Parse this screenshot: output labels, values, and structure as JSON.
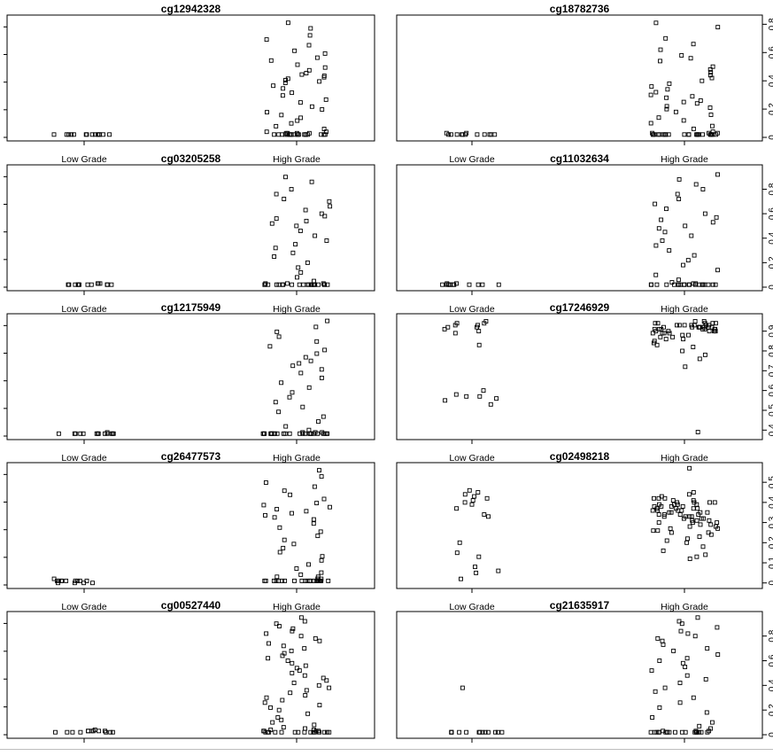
{
  "chart_data": [
    {
      "type": "scatter",
      "title": "cg12942328",
      "categories": [
        "Low Grade",
        "High Grade"
      ],
      "yticks": [],
      "ylim": [
        0,
        0.85
      ],
      "series": [
        {
          "category": "Low Grade",
          "values": [
            0.02,
            0.02,
            0.02,
            0.02,
            0.02,
            0.02,
            0.02,
            0.02,
            0.02,
            0.02,
            0.02,
            0.02,
            0.02,
            0.02
          ]
        },
        {
          "category": "High Grade",
          "values": [
            0.82,
            0.78,
            0.73,
            0.7,
            0.66,
            0.62,
            0.6,
            0.57,
            0.55,
            0.52,
            0.5,
            0.48,
            0.46,
            0.45,
            0.44,
            0.43,
            0.42,
            0.41,
            0.4,
            0.39,
            0.37,
            0.35,
            0.32,
            0.3,
            0.27,
            0.25,
            0.22,
            0.2,
            0.18,
            0.16,
            0.14,
            0.12,
            0.1,
            0.08,
            0.06,
            0.04,
            0.03,
            0.03,
            0.02,
            0.02,
            0.02,
            0.02,
            0.02,
            0.02,
            0.02,
            0.02,
            0.02,
            0.02,
            0.02,
            0.02,
            0.02,
            0.02,
            0.02,
            0.02,
            0.02,
            0.02,
            0.03,
            0.03,
            0.04,
            0.02
          ]
        }
      ]
    },
    {
      "type": "scatter",
      "title": "cg18782736",
      "categories": [
        "Low Grade",
        "High Grade"
      ],
      "yticks": [
        0,
        0.2,
        0.4,
        0.6,
        0.8
      ],
      "ylim": [
        0,
        0.84
      ],
      "series": [
        {
          "category": "Low Grade",
          "values": [
            0.02,
            0.02,
            0.02,
            0.02,
            0.02,
            0.02,
            0.02,
            0.02,
            0.02,
            0.02,
            0.03,
            0.03,
            0.02
          ]
        },
        {
          "category": "High Grade",
          "values": [
            0.81,
            0.78,
            0.7,
            0.66,
            0.62,
            0.58,
            0.56,
            0.54,
            0.5,
            0.48,
            0.46,
            0.44,
            0.42,
            0.4,
            0.38,
            0.36,
            0.34,
            0.32,
            0.3,
            0.29,
            0.28,
            0.26,
            0.25,
            0.24,
            0.22,
            0.21,
            0.2,
            0.18,
            0.16,
            0.14,
            0.12,
            0.1,
            0.08,
            0.06,
            0.04,
            0.03,
            0.02,
            0.02,
            0.02,
            0.02,
            0.02,
            0.02,
            0.02,
            0.02,
            0.02,
            0.02,
            0.02,
            0.02,
            0.02,
            0.02,
            0.02,
            0.02,
            0.02,
            0.02,
            0.02,
            0.02,
            0.02,
            0.02,
            0.03,
            0.03
          ]
        }
      ]
    },
    {
      "type": "scatter",
      "title": "cg03205258",
      "categories": [
        "Low Grade",
        "High Grade"
      ],
      "yticks": [],
      "ylim": [
        0,
        0.97
      ],
      "series": [
        {
          "category": "Low Grade",
          "values": [
            0.02,
            0.03,
            0.02,
            0.02,
            0.03,
            0.02,
            0.02,
            0.02,
            0.02,
            0.02,
            0.02,
            0.02,
            0.02,
            0.03
          ]
        },
        {
          "category": "High Grade",
          "values": [
            0.9,
            0.86,
            0.8,
            0.76,
            0.72,
            0.7,
            0.66,
            0.63,
            0.6,
            0.58,
            0.56,
            0.54,
            0.52,
            0.5,
            0.46,
            0.42,
            0.38,
            0.35,
            0.32,
            0.28,
            0.25,
            0.2,
            0.16,
            0.12,
            0.08,
            0.05,
            0.03,
            0.02,
            0.02,
            0.02,
            0.02,
            0.02,
            0.02,
            0.02,
            0.02,
            0.02,
            0.02,
            0.02,
            0.02,
            0.02,
            0.02,
            0.02,
            0.02,
            0.02,
            0.02,
            0.02,
            0.02,
            0.02,
            0.03,
            0.03
          ]
        }
      ]
    },
    {
      "type": "scatter",
      "title": "cg11032634",
      "categories": [
        "Low Grade",
        "High Grade"
      ],
      "yticks": [
        0,
        0.2,
        0.4,
        0.6,
        0.8
      ],
      "ylim": [
        0,
        0.97
      ],
      "series": [
        {
          "category": "Low Grade",
          "values": [
            0.02,
            0.02,
            0.02,
            0.03,
            0.02,
            0.02,
            0.02,
            0.02,
            0.02,
            0.02,
            0.02,
            0.03,
            0.02
          ]
        },
        {
          "category": "High Grade",
          "values": [
            0.92,
            0.88,
            0.84,
            0.8,
            0.76,
            0.72,
            0.68,
            0.64,
            0.6,
            0.57,
            0.55,
            0.53,
            0.5,
            0.48,
            0.45,
            0.42,
            0.38,
            0.34,
            0.3,
            0.26,
            0.22,
            0.18,
            0.14,
            0.1,
            0.06,
            0.04,
            0.02,
            0.02,
            0.02,
            0.02,
            0.02,
            0.02,
            0.02,
            0.02,
            0.02,
            0.02,
            0.02,
            0.02,
            0.02,
            0.02,
            0.02,
            0.02,
            0.02,
            0.02,
            0.02,
            0.02,
            0.03,
            0.03
          ]
        }
      ]
    },
    {
      "type": "scatter",
      "title": "cg12175949",
      "categories": [
        "Low Grade",
        "High Grade"
      ],
      "yticks": [],
      "ylim": [
        0,
        0.98
      ],
      "series": [
        {
          "category": "Low Grade",
          "values": [
            0.02,
            0.03,
            0.02,
            0.02,
            0.02,
            0.02,
            0.02,
            0.02,
            0.02,
            0.02,
            0.02,
            0.02,
            0.02,
            0.02
          ]
        },
        {
          "category": "High Grade",
          "values": [
            0.95,
            0.9,
            0.86,
            0.82,
            0.78,
            0.74,
            0.71,
            0.68,
            0.65,
            0.62,
            0.6,
            0.58,
            0.55,
            0.52,
            0.48,
            0.44,
            0.4,
            0.36,
            0.32,
            0.28,
            0.24,
            0.2,
            0.16,
            0.12,
            0.08,
            0.05,
            0.03,
            0.02,
            0.02,
            0.02,
            0.02,
            0.02,
            0.02,
            0.02,
            0.02,
            0.02,
            0.02,
            0.02,
            0.02,
            0.02,
            0.02,
            0.02,
            0.02,
            0.02,
            0.02,
            0.02,
            0.02,
            0.02,
            0.02,
            0.02,
            0.02,
            0.02,
            0.03,
            0.03
          ]
        }
      ]
    },
    {
      "type": "scatter",
      "title": "cg17246929",
      "categories": [
        "Low Grade",
        "High Grade"
      ],
      "yticks": [
        0.4,
        0.5,
        0.6,
        0.7,
        0.8,
        0.9
      ],
      "ylim": [
        0.37,
        0.97
      ],
      "series": [
        {
          "category": "Low Grade",
          "values": [
            0.94,
            0.95,
            0.93,
            0.92,
            0.91,
            0.9,
            0.89,
            0.92,
            0.94,
            0.93,
            0.83,
            0.57,
            0.53,
            0.58,
            0.56,
            0.55,
            0.6,
            0.57
          ]
        },
        {
          "category": "High Grade",
          "values": [
            0.95,
            0.95,
            0.94,
            0.94,
            0.94,
            0.93,
            0.93,
            0.93,
            0.93,
            0.92,
            0.92,
            0.92,
            0.92,
            0.92,
            0.92,
            0.91,
            0.91,
            0.91,
            0.91,
            0.91,
            0.9,
            0.9,
            0.9,
            0.9,
            0.9,
            0.89,
            0.89,
            0.89,
            0.88,
            0.88,
            0.87,
            0.87,
            0.86,
            0.86,
            0.85,
            0.84,
            0.83,
            0.82,
            0.8,
            0.78,
            0.76,
            0.72,
            0.39,
            0.93,
            0.92,
            0.94,
            0.91,
            0.9,
            0.92,
            0.93,
            0.91,
            0.89,
            0.94,
            0.92,
            0.93
          ]
        }
      ]
    },
    {
      "type": "scatter",
      "title": "cg26477573",
      "categories": [
        "Low Grade",
        "High Grade"
      ],
      "yticks": [],
      "ylim": [
        0,
        0.58
      ],
      "series": [
        {
          "category": "Low Grade",
          "values": [
            0.02,
            0.02,
            0.02,
            0.01,
            0.02,
            0.01,
            0.02,
            0.02,
            0.01,
            0.02,
            0.01,
            0.02,
            0.02,
            0.03
          ]
        },
        {
          "category": "High Grade",
          "values": [
            0.56,
            0.53,
            0.5,
            0.48,
            0.46,
            0.44,
            0.42,
            0.4,
            0.39,
            0.38,
            0.37,
            0.36,
            0.35,
            0.34,
            0.33,
            0.32,
            0.3,
            0.28,
            0.26,
            0.24,
            0.22,
            0.2,
            0.18,
            0.16,
            0.14,
            0.12,
            0.1,
            0.08,
            0.06,
            0.04,
            0.03,
            0.02,
            0.02,
            0.02,
            0.02,
            0.02,
            0.02,
            0.02,
            0.02,
            0.02,
            0.02,
            0.02,
            0.02,
            0.02,
            0.02,
            0.02,
            0.02,
            0.02,
            0.02,
            0.02,
            0.02,
            0.02,
            0.02,
            0.03,
            0.03,
            0.04,
            0.05
          ]
        }
      ]
    },
    {
      "type": "scatter",
      "title": "cg02498218",
      "categories": [
        "Low Grade",
        "High Grade"
      ],
      "yticks": [
        0,
        0.1,
        0.2,
        0.3,
        0.4,
        0.5
      ],
      "ylim": [
        -0.01,
        0.58
      ],
      "series": [
        {
          "category": "Low Grade",
          "values": [
            0.46,
            0.44,
            0.43,
            0.42,
            0.41,
            0.4,
            0.39,
            0.37,
            0.34,
            0.33,
            0.2,
            0.15,
            0.13,
            0.08,
            0.06,
            0.05,
            0.02,
            0.45
          ]
        },
        {
          "category": "High Grade",
          "values": [
            0.57,
            0.45,
            0.44,
            0.43,
            0.42,
            0.42,
            0.41,
            0.41,
            0.4,
            0.4,
            0.4,
            0.39,
            0.39,
            0.39,
            0.38,
            0.38,
            0.38,
            0.37,
            0.37,
            0.37,
            0.36,
            0.36,
            0.36,
            0.35,
            0.35,
            0.35,
            0.34,
            0.34,
            0.34,
            0.33,
            0.33,
            0.33,
            0.32,
            0.32,
            0.32,
            0.31,
            0.31,
            0.3,
            0.3,
            0.29,
            0.29,
            0.28,
            0.28,
            0.27,
            0.27,
            0.26,
            0.26,
            0.25,
            0.25,
            0.24,
            0.23,
            0.22,
            0.21,
            0.2,
            0.18,
            0.16,
            0.14,
            0.13,
            0.12,
            0.4,
            0.38,
            0.36,
            0.35,
            0.33,
            0.31,
            0.37,
            0.39,
            0.42,
            0.34,
            0.3
          ]
        }
      ]
    },
    {
      "type": "scatter",
      "title": "cg00527440",
      "categories": [
        "Low Grade",
        "High Grade"
      ],
      "yticks": [],
      "ylim": [
        0,
        0.97
      ],
      "series": [
        {
          "category": "Low Grade",
          "values": [
            0.03,
            0.04,
            0.03,
            0.02,
            0.03,
            0.03,
            0.02,
            0.02,
            0.02,
            0.03,
            0.02,
            0.02,
            0.03,
            0.02
          ]
        },
        {
          "category": "High Grade",
          "values": [
            0.95,
            0.92,
            0.9,
            0.88,
            0.86,
            0.84,
            0.82,
            0.8,
            0.78,
            0.76,
            0.74,
            0.72,
            0.7,
            0.68,
            0.66,
            0.64,
            0.62,
            0.6,
            0.58,
            0.56,
            0.54,
            0.52,
            0.5,
            0.48,
            0.46,
            0.44,
            0.42,
            0.4,
            0.38,
            0.36,
            0.34,
            0.32,
            0.3,
            0.28,
            0.26,
            0.24,
            0.22,
            0.2,
            0.17,
            0.14,
            0.12,
            0.1,
            0.08,
            0.06,
            0.05,
            0.04,
            0.03,
            0.03,
            0.02,
            0.02,
            0.02,
            0.02,
            0.02,
            0.02,
            0.02,
            0.02,
            0.02,
            0.02,
            0.02,
            0.02,
            0.03,
            0.03,
            0.04,
            0.02,
            0.02,
            0.02
          ]
        }
      ]
    },
    {
      "type": "scatter",
      "title": "cg21635917",
      "categories": [
        "Low Grade",
        "High Grade"
      ],
      "yticks": [
        0,
        0.2,
        0.4,
        0.6,
        0.8
      ],
      "ylim": [
        0,
        0.97
      ],
      "series": [
        {
          "category": "Low Grade",
          "values": [
            0.02,
            0.02,
            0.02,
            0.02,
            0.02,
            0.02,
            0.02,
            0.02,
            0.02,
            0.02,
            0.02,
            0.02,
            0.02,
            0.38
          ]
        },
        {
          "category": "High Grade",
          "values": [
            0.95,
            0.92,
            0.9,
            0.87,
            0.84,
            0.82,
            0.8,
            0.78,
            0.76,
            0.73,
            0.7,
            0.68,
            0.65,
            0.62,
            0.6,
            0.58,
            0.55,
            0.52,
            0.48,
            0.45,
            0.42,
            0.38,
            0.35,
            0.3,
            0.26,
            0.22,
            0.18,
            0.14,
            0.1,
            0.07,
            0.05,
            0.03,
            0.02,
            0.02,
            0.02,
            0.02,
            0.02,
            0.02,
            0.02,
            0.02,
            0.02,
            0.02,
            0.02,
            0.02,
            0.02,
            0.02,
            0.02,
            0.02,
            0.02,
            0.02,
            0.02,
            0.03,
            0.03
          ]
        }
      ]
    }
  ]
}
